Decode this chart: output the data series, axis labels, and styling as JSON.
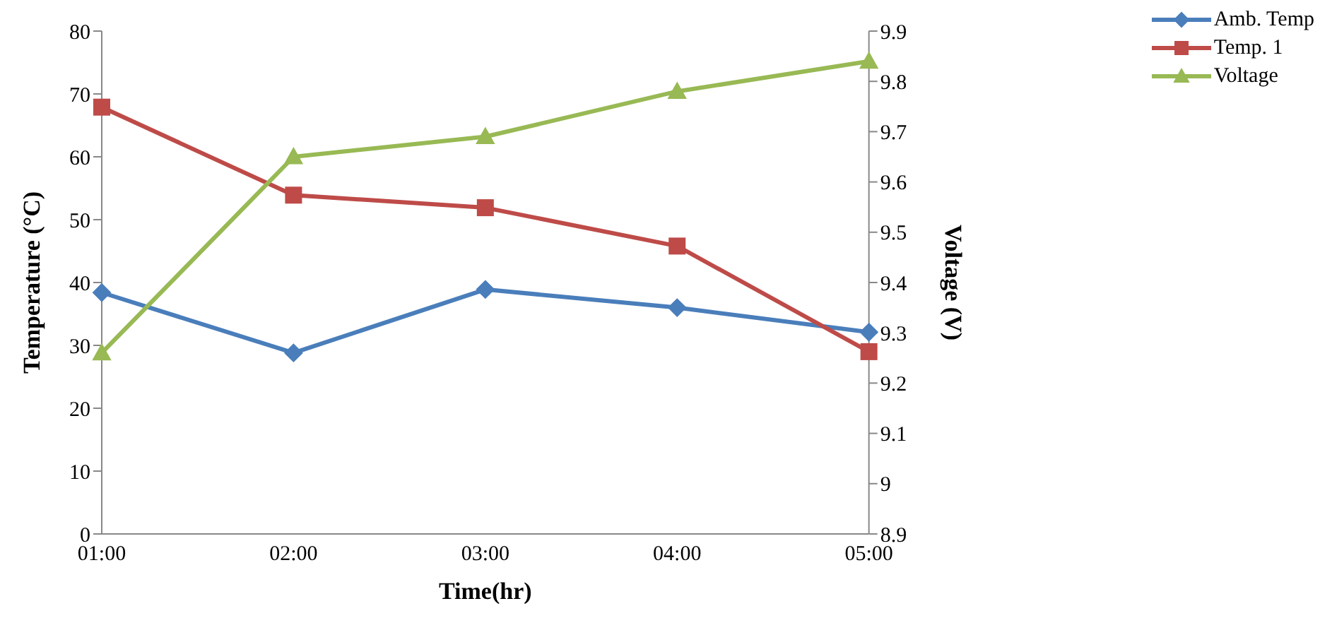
{
  "chart_data": {
    "type": "line",
    "xlabel": "Time(hr)",
    "ylabel": "Temperature (°C)",
    "y2label": "Voltage (V)",
    "categories": [
      "01:00",
      "02:00",
      "03:00",
      "04:00",
      "05:00"
    ],
    "series": [
      {
        "name": "Amb. Temp",
        "color": "#4a7ebb",
        "marker": "diamond",
        "values": [
          38.4,
          28.8,
          38.9,
          36,
          32.1
        ]
      },
      {
        "name": "Temp. 1",
        "color": "#be4b48",
        "marker": "square",
        "values": [
          67.9,
          53.9,
          51.9,
          45.8,
          29
        ]
      },
      {
        "name": "Voltage",
        "color": "#98b954",
        "marker": "triangle",
        "axis": "y2",
        "values": [
          9.26,
          9.65,
          9.69,
          9.78,
          9.84
        ]
      }
    ],
    "ylim": [
      0,
      80
    ],
    "yticks": [
      0,
      10,
      20,
      30,
      40,
      50,
      60,
      70,
      80
    ],
    "y2lim": [
      8.9,
      9.9
    ],
    "y2ticks": [
      8.9,
      9,
      9.1,
      9.2,
      9.3,
      9.4,
      9.5,
      9.6,
      9.7,
      9.8,
      9.9
    ],
    "grid": false,
    "legend": "top right"
  }
}
